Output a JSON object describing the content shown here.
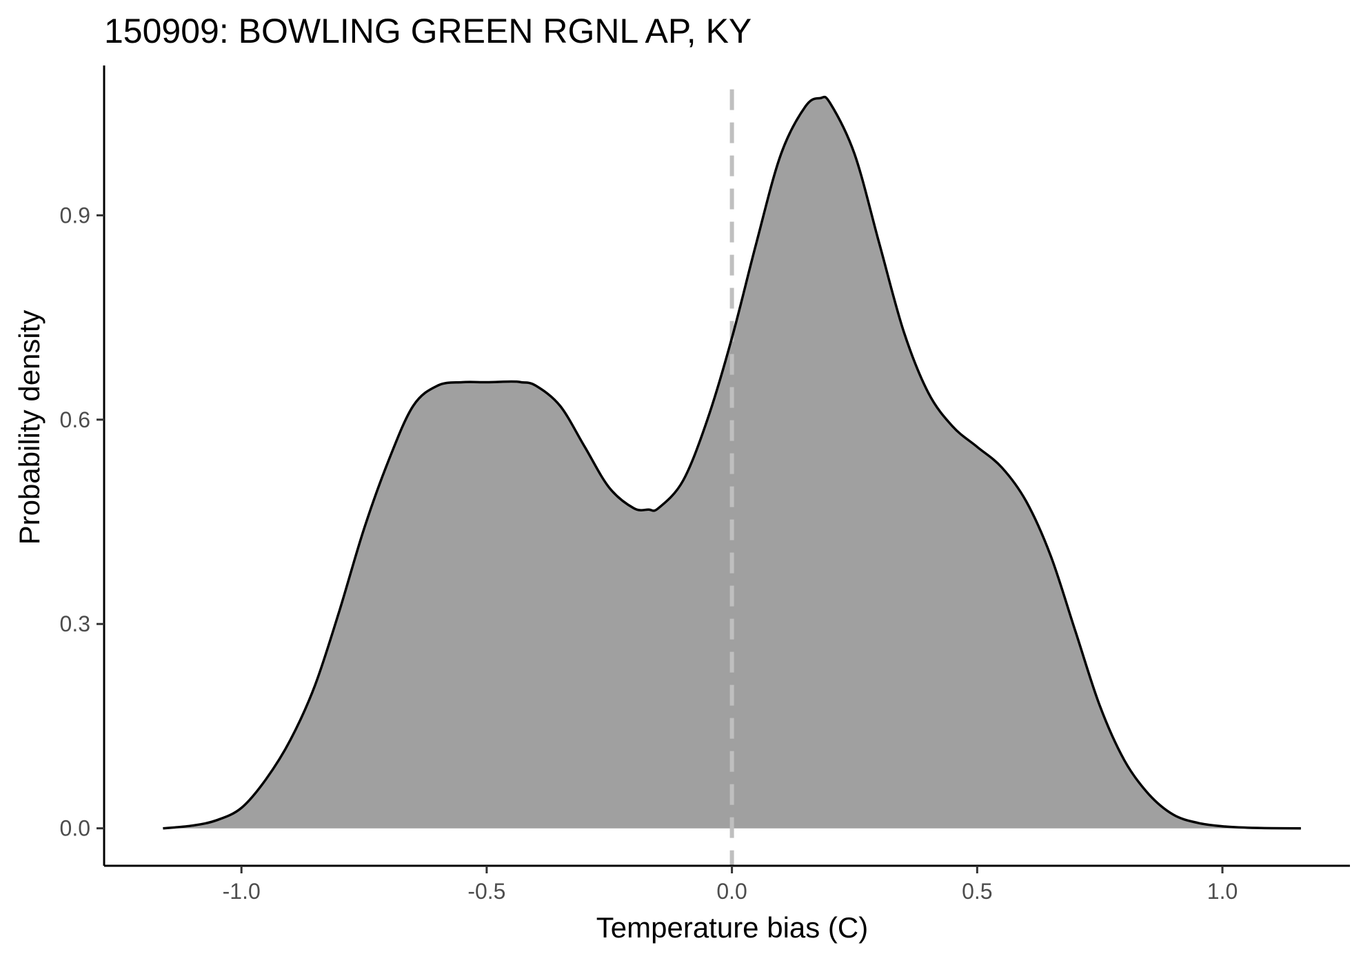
{
  "chart_data": {
    "type": "area",
    "title": "150909: BOWLING GREEN RGNL AP, KY",
    "xlabel": "Temperature bias (C)",
    "ylabel": "Probability density",
    "xlim": [
      -1.28,
      1.26
    ],
    "ylim": [
      -0.055,
      1.12
    ],
    "x_ticks": [
      -1.0,
      -0.5,
      0.0,
      0.5,
      1.0
    ],
    "x_tick_labels": [
      "-1.0",
      "-0.5",
      "0.0",
      "0.5",
      "1.0"
    ],
    "y_ticks": [
      0.0,
      0.3,
      0.6,
      0.9
    ],
    "y_tick_labels": [
      "0.0",
      "0.3",
      "0.6",
      "0.9"
    ],
    "grid": false,
    "legend": "none",
    "fill_color": "#a0a0a0",
    "line_color": "#000000",
    "reference_line": {
      "x": 0.0,
      "style": "dashed",
      "color": "#bfbfbf"
    },
    "series": [
      {
        "x": [
          -1.16,
          -1.1,
          -1.05,
          -1.0,
          -0.95,
          -0.9,
          -0.85,
          -0.8,
          -0.75,
          -0.7,
          -0.65,
          -0.6,
          -0.55,
          -0.5,
          -0.45,
          -0.43,
          -0.4,
          -0.35,
          -0.3,
          -0.25,
          -0.2,
          -0.17,
          -0.15,
          -0.1,
          -0.05,
          0.0,
          0.05,
          0.1,
          0.15,
          0.18,
          0.2,
          0.25,
          0.3,
          0.35,
          0.4,
          0.45,
          0.5,
          0.55,
          0.6,
          0.65,
          0.7,
          0.75,
          0.8,
          0.85,
          0.9,
          0.95,
          1.0,
          1.05,
          1.1,
          1.16
        ],
        "y": [
          0.0,
          0.004,
          0.012,
          0.03,
          0.072,
          0.13,
          0.21,
          0.32,
          0.44,
          0.54,
          0.62,
          0.65,
          0.655,
          0.655,
          0.656,
          0.655,
          0.65,
          0.62,
          0.56,
          0.5,
          0.47,
          0.468,
          0.47,
          0.51,
          0.6,
          0.72,
          0.86,
          0.99,
          1.06,
          1.072,
          1.065,
          0.99,
          0.86,
          0.73,
          0.64,
          0.59,
          0.56,
          0.53,
          0.48,
          0.4,
          0.29,
          0.18,
          0.1,
          0.05,
          0.02,
          0.008,
          0.003,
          0.001,
          0.0002,
          0.0
        ]
      }
    ]
  }
}
